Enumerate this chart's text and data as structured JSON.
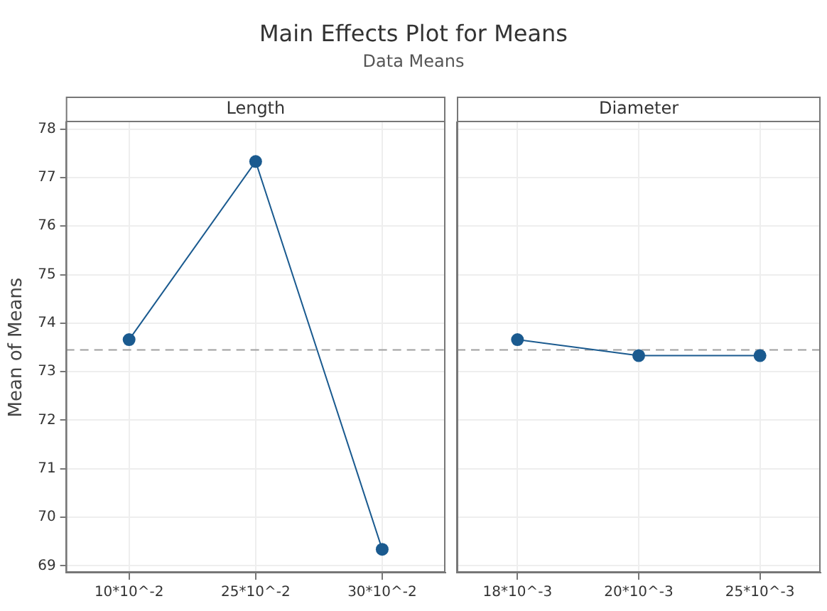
{
  "chart_data": [
    {
      "type": "line",
      "title": "Main Effects Plot for Means",
      "subtitle": "Data Means",
      "ylabel": "Mean of Means",
      "categories": [
        "10*10^-2",
        "25*10^-2",
        "30*10^-2"
      ],
      "series": [
        {
          "name": "Length",
          "color": "#1a5a8f",
          "values": [
            73.66,
            77.33,
            69.34
          ]
        }
      ],
      "ylim": [
        68.86,
        78.14
      ],
      "yticks": [
        69,
        70,
        71,
        72,
        73,
        74,
        75,
        76,
        77,
        78
      ],
      "grid": true,
      "marker": "circle",
      "line_style": "solid",
      "ref_lines": [
        {
          "axis": "y",
          "value": 73.45,
          "color": "#a0a0a0",
          "line_style": "dashed"
        }
      ]
    },
    {
      "type": "line",
      "categories": [
        "18*10^-3",
        "20*10^-3",
        "25*10^-3"
      ],
      "series": [
        {
          "name": "Diameter",
          "color": "#1a5a8f",
          "values": [
            73.66,
            73.33,
            73.33
          ]
        }
      ],
      "ylim": [
        68.86,
        78.14
      ],
      "yticks": [
        69,
        70,
        71,
        72,
        73,
        74,
        75,
        76,
        77,
        78
      ],
      "grid": true,
      "marker": "circle",
      "line_style": "solid",
      "tick_labels": "x",
      "ref_lines": [
        {
          "axis": "y",
          "value": 73.45,
          "color": "#a0a0a0",
          "line_style": "dashed"
        }
      ]
    }
  ]
}
